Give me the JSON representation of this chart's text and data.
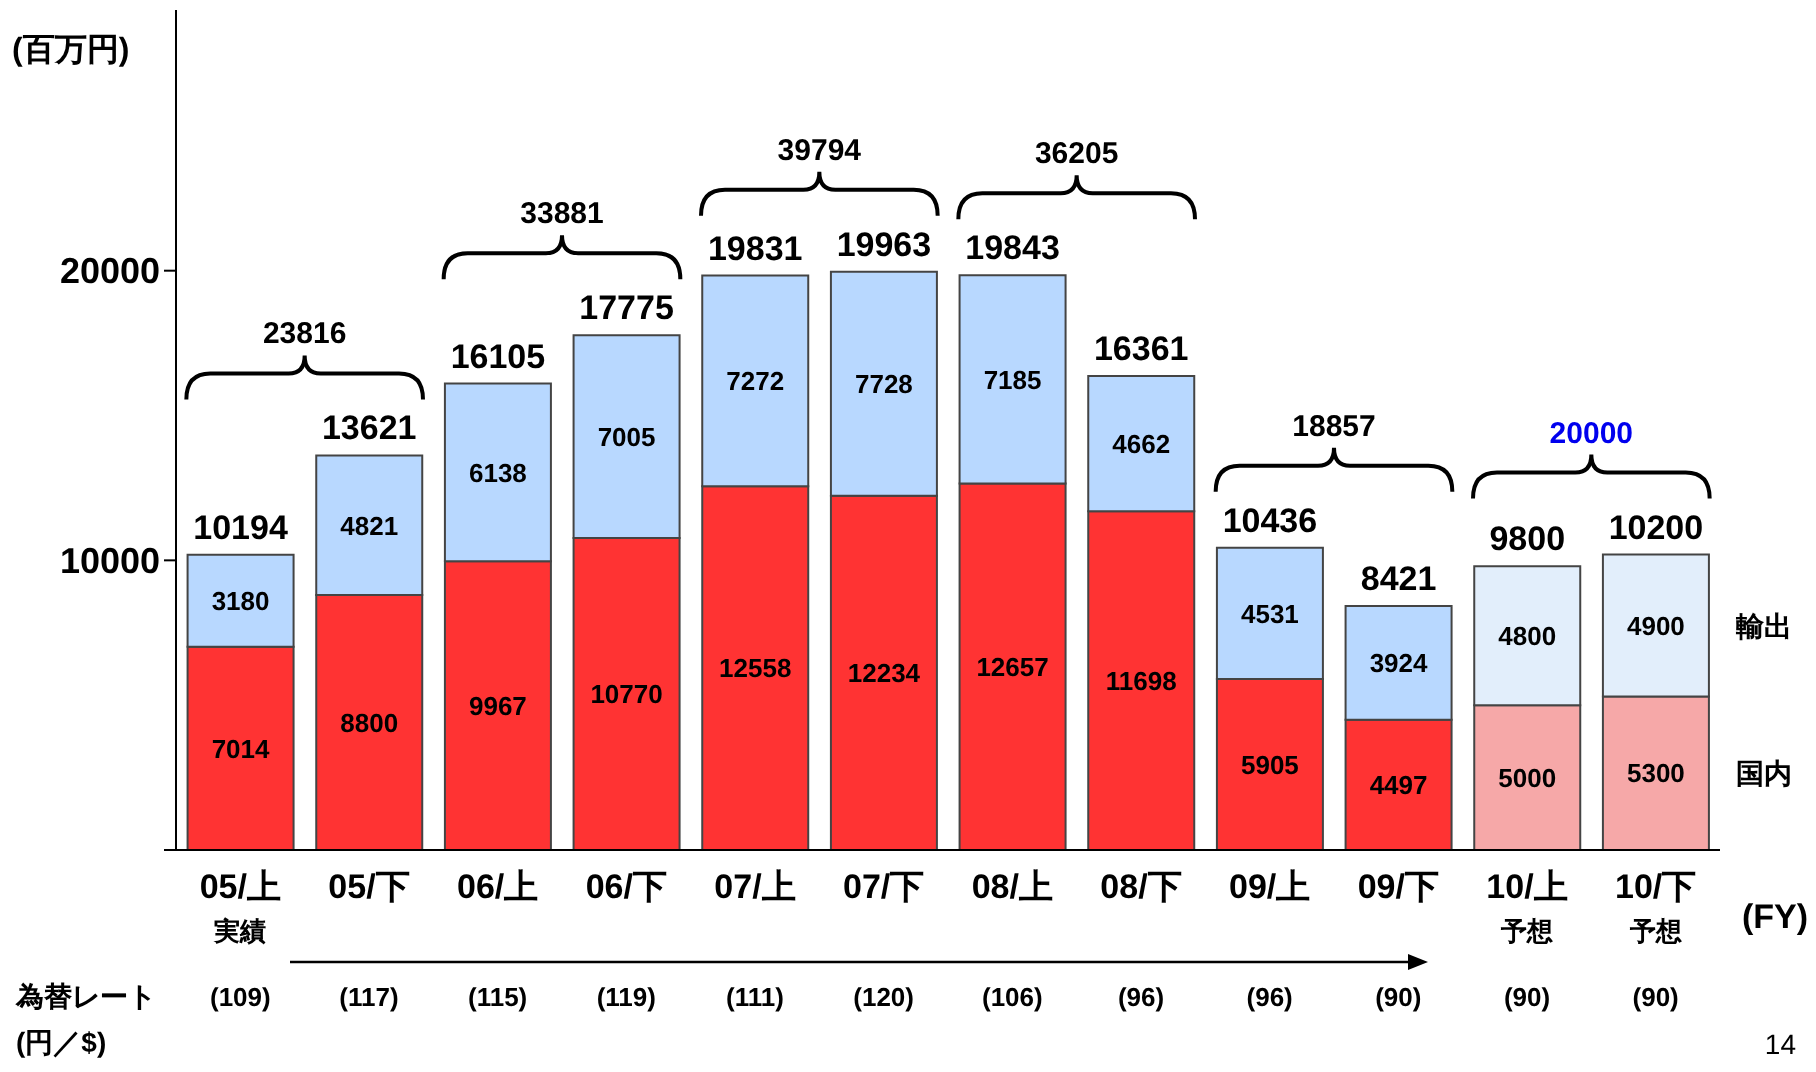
{
  "chart_data": {
    "type": "bar",
    "stacked": true,
    "ylabel": "(百万円)",
    "categories": [
      "05/上",
      "05/下",
      "06/上",
      "06/下",
      "07/上",
      "07/下",
      "08/上",
      "08/下",
      "09/上",
      "09/下",
      "10/上",
      "10/下"
    ],
    "series": [
      {
        "name": "国内",
        "colors": [
          "#ff3333",
          "#ff3333",
          "#ff3333",
          "#ff3333",
          "#ff3333",
          "#ff3333",
          "#ff3333",
          "#ff3333",
          "#ff3333",
          "#ff3333",
          "#f6a8a8",
          "#f6a8a8"
        ],
        "values": [
          7014,
          8800,
          9967,
          10770,
          12558,
          12234,
          12657,
          11698,
          5905,
          4497,
          5000,
          5300
        ]
      },
      {
        "name": "輸出",
        "colors": [
          "#b8d8ff",
          "#b8d8ff",
          "#b8d8ff",
          "#b8d8ff",
          "#b8d8ff",
          "#b8d8ff",
          "#b8d8ff",
          "#b8d8ff",
          "#b8d8ff",
          "#b8d8ff",
          "#e2eefb",
          "#e2eefb"
        ],
        "values": [
          3180,
          4821,
          6138,
          7005,
          7272,
          7728,
          7185,
          4662,
          4531,
          3924,
          4800,
          4900
        ]
      }
    ],
    "totals": [
      "10194",
      "13621",
      "16105",
      "17775",
      "19831",
      "19963",
      "19843",
      "16361",
      "10436",
      "8421",
      "9800",
      "10200"
    ],
    "data_labels": true,
    "ylim": [
      0,
      29000
    ],
    "yticks": [
      {
        "value": 0,
        "label": null
      },
      10000,
      20000
    ],
    "annotations": [
      "23816",
      "33881",
      "39794",
      "36205",
      "18857",
      "20000",
      "実績",
      "予想",
      "予想",
      "(109)",
      "(117)",
      "(115)",
      "(119)",
      "(111)",
      "(120)",
      "(106)",
      "(96)",
      "(96)",
      "(90)",
      "(90)",
      "(90)",
      "為替レート",
      "(円／$)",
      "(FY)",
      "14"
    ]
  }
}
